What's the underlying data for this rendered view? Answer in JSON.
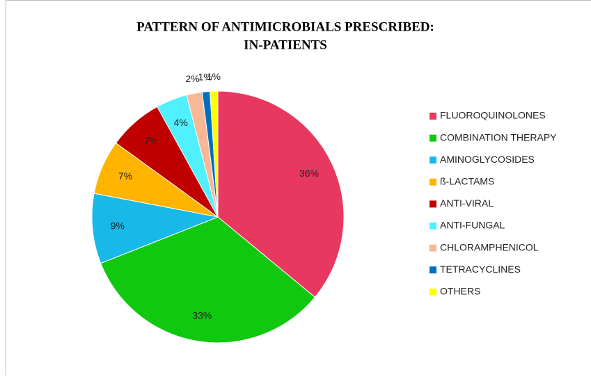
{
  "chart_data": {
    "type": "pie",
    "title": [
      "PATTERN OF ANTIMICROBIALS PRESCRIBED:",
      "IN-PATIENTS"
    ],
    "categories": [
      "FLUOROQUINOLONES",
      "COMBINATION THERAPY",
      "AMINOGLYCOSIDES",
      "ß-LACTAMS",
      "ANTI-VIRAL",
      "ANTI-FUNGAL",
      "CHLORAMPHENICOL",
      "TETRACYCLINES",
      "OTHERS"
    ],
    "values": [
      36,
      33,
      9,
      7,
      7,
      4,
      2,
      1,
      1
    ],
    "value_labels": [
      "36%",
      "33%",
      "9%",
      "7%",
      "7%",
      "4%",
      "2%",
      "1%",
      "1%"
    ],
    "colors": [
      "#e8385f",
      "#10c810",
      "#18b8e8",
      "#ffb400",
      "#c00000",
      "#50f0ff",
      "#f8b896",
      "#0070c0",
      "#ffff00"
    ],
    "legend": "right"
  }
}
